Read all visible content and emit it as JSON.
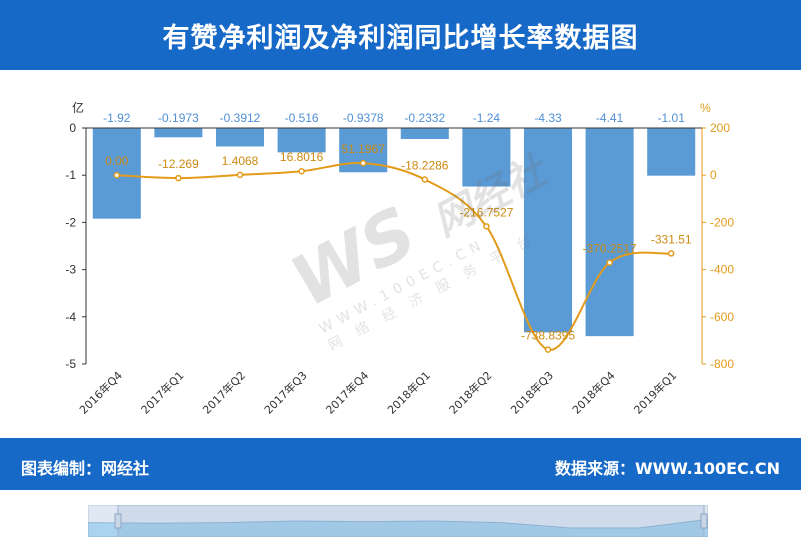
{
  "header": {
    "title": "有赞净利润及净利润同比增长率数据图"
  },
  "footer": {
    "left_text": "图表编制：网经社",
    "right_text": "数据来源：WWW.100EC.CN"
  },
  "watermark": {
    "logo": "WS",
    "name": "网经社",
    "url": "WWW.100EC.CN",
    "tagline": "网 络 经 济 服 务 平 台"
  },
  "colors": {
    "header_bg": "#1769c7",
    "bar": "#5b9bd5",
    "line": "#e39b1b",
    "bar_label": "#4f8fd6",
    "line_label": "#cc8a12"
  },
  "chart_data": {
    "type": "bar",
    "categories": [
      "2016年Q4",
      "2017年Q1",
      "2017年Q2",
      "2017年Q3",
      "2017年Q4",
      "2018年Q1",
      "2018年Q2",
      "2018年Q3",
      "2018年Q4",
      "2019年Q1"
    ],
    "series": [
      {
        "type": "bar",
        "axis": "left",
        "values": [
          -1.92,
          -0.1973,
          -0.3912,
          -0.516,
          -0.9378,
          -0.2332,
          -1.24,
          -4.33,
          -4.41,
          -1.01
        ],
        "labels": [
          "-1.92",
          "-0.1973",
          "-0.3912",
          "-0.516",
          "-0.9378",
          "-0.2332",
          "-1.24",
          "-4.33",
          "-4.41",
          "-1.01"
        ]
      },
      {
        "type": "line",
        "axis": "right",
        "values": [
          0.0,
          -12.269,
          1.4068,
          16.8016,
          51.1967,
          -18.2286,
          -216.7527,
          -738.8395,
          -370.2517,
          -331.51
        ],
        "labels": [
          "0.00",
          "-12.269",
          "1.4068",
          "16.8016",
          "51.1967",
          "-18.2286",
          "-216.7527",
          "-738.8395",
          "-370.2517",
          "-331.51"
        ]
      }
    ],
    "y_left": {
      "unit": "亿",
      "ticks": [
        "0",
        "-1",
        "-2",
        "-3",
        "-4",
        "-5"
      ],
      "min": -5,
      "max": 0
    },
    "y_right": {
      "unit": "%",
      "ticks": [
        "200",
        "0",
        "-200",
        "-400",
        "-600",
        "-800"
      ],
      "min": -800,
      "max": 200
    },
    "zoom_slider": [
      0.55,
      0.57,
      0.55,
      0.5,
      0.52,
      0.5,
      0.55,
      0.72,
      0.72,
      0.45
    ]
  }
}
